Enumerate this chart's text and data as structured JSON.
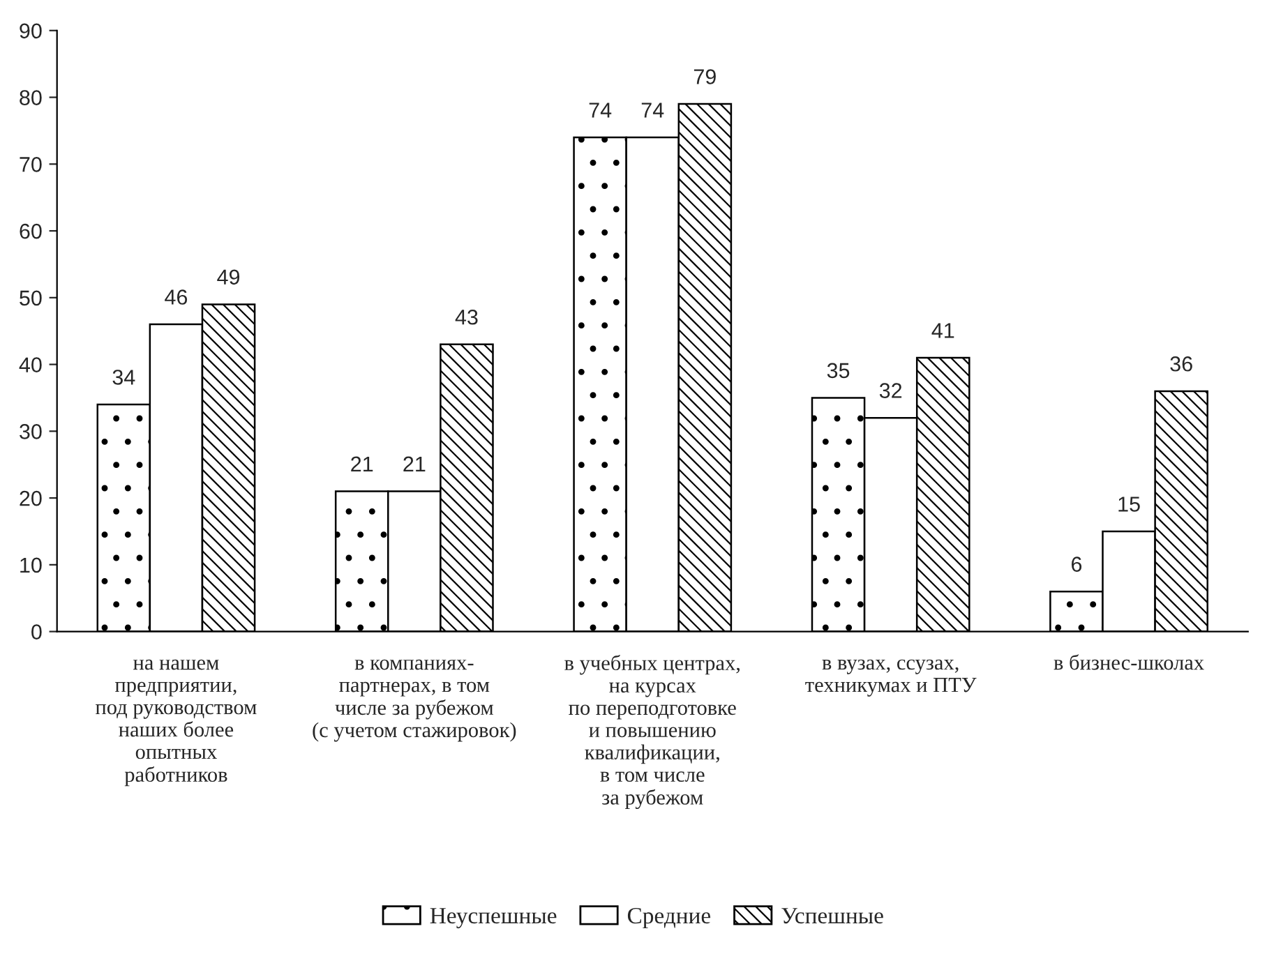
{
  "chart_data": {
    "type": "bar",
    "categories": [
      "на нашем\nпредприятии,\nпод руководством\nнаших более\nопытных\nработников",
      "в компаниях-\nпартнерах, в том\nчисле за рубежом\n(с учетом стажировок)",
      "в учебных центрах,\nна курсах\nпо переподготовке\nи повышению\nквалификации,\nв том числе\nза рубежом",
      "в вузах, ссузах,\nтехникумах и ПТУ",
      "в бизнес-школах"
    ],
    "series": [
      {
        "name": "Неуспешные",
        "color": "#000000",
        "values": [
          34,
          21,
          74,
          35,
          6
        ]
      },
      {
        "name": "Средние",
        "color": "#000000",
        "values": [
          46,
          21,
          74,
          32,
          15
        ]
      },
      {
        "name": "Успешные",
        "color": "#000000",
        "values": [
          49,
          43,
          79,
          41,
          36
        ]
      }
    ],
    "ylim": [
      0,
      90
    ],
    "yticks": [
      0,
      10,
      20,
      30,
      40,
      50,
      60,
      70,
      80,
      90
    ],
    "data_labels": true,
    "grid": false,
    "legend": "bottom"
  }
}
